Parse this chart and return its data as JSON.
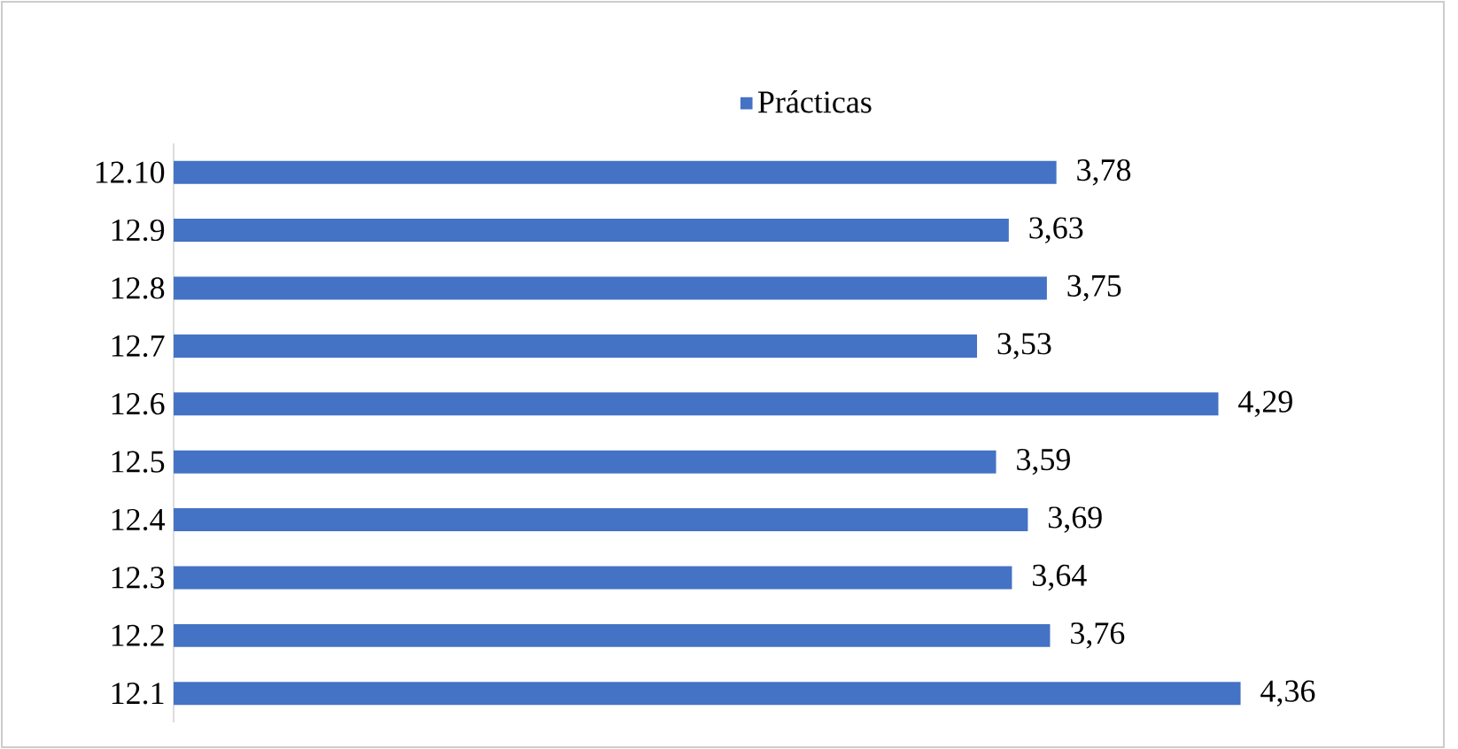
{
  "chart_data": {
    "type": "bar",
    "orientation": "horizontal",
    "categories": [
      "12.10",
      "12.9",
      "12.8",
      "12.7",
      "12.6",
      "12.5",
      "12.4",
      "12.3",
      "12.2",
      "12.1"
    ],
    "series": [
      {
        "name": "Prácticas",
        "color": "#4472c4",
        "values": [
          3.78,
          3.63,
          3.75,
          3.53,
          4.29,
          3.59,
          3.69,
          3.64,
          3.76,
          4.36
        ],
        "value_labels": [
          "3,78",
          "3,63",
          "3,75",
          "3,53",
          "4,29",
          "3,59",
          "3,69",
          "3,64",
          "3,76",
          "4,36"
        ]
      }
    ],
    "xlim": [
      1,
      5
    ],
    "tick_labels": "y",
    "legend": "top"
  }
}
